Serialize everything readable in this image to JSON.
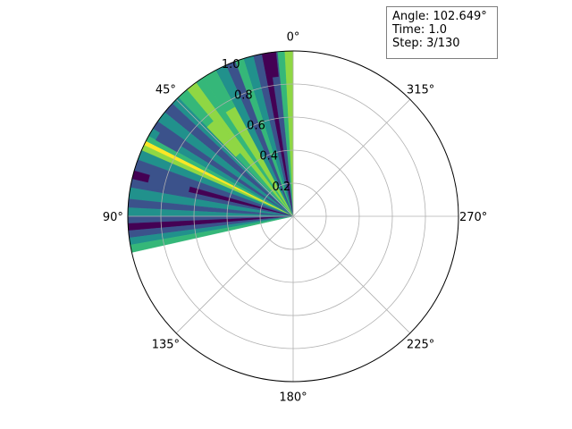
{
  "info": {
    "angle_label": "Angle: 102.649°",
    "time_label": "Time: 1.0",
    "step_label": "Step: 3/130"
  },
  "chart_data": {
    "type": "polar_contour",
    "theta_zero_location": "top",
    "theta_direction": "counterclockwise",
    "rmax": 1.0,
    "swept_angle_deg": 102.649,
    "theta_ticks": [
      "0°",
      "45°",
      "90°",
      "135°",
      "180°",
      "225°",
      "270°",
      "315°"
    ],
    "r_ticks": [
      "0.2",
      "0.4",
      "0.6",
      "0.8",
      "1.0"
    ],
    "r_tick_values": [
      0.2,
      0.4,
      0.6,
      0.8,
      1.0
    ],
    "grid": true,
    "colormap": [
      "#440154",
      "#3b528b",
      "#21918c",
      "#35b779",
      "#8fd744",
      "#fde725"
    ],
    "sectors": [
      {
        "from": 0.0,
        "to": 3.0,
        "level": 4
      },
      {
        "from": 3.0,
        "to": 5.5,
        "level": 3
      },
      {
        "from": 5.5,
        "to": 8.5,
        "level": 1
      },
      {
        "from": 8.5,
        "to": 11.0,
        "level": 0
      },
      {
        "from": 11.0,
        "to": 14.0,
        "level": 1
      },
      {
        "from": 14.0,
        "to": 17.5,
        "level": 2
      },
      {
        "from": 17.5,
        "to": 20.5,
        "level": 3
      },
      {
        "from": 20.5,
        "to": 24.0,
        "level": 1
      },
      {
        "from": 24.0,
        "to": 28.0,
        "level": 2
      },
      {
        "from": 28.0,
        "to": 33.0,
        "level": 4
      },
      {
        "from": 33.0,
        "to": 36.0,
        "level": 3
      },
      {
        "from": 36.0,
        "to": 40.0,
        "level": 4
      },
      {
        "from": 40.0,
        "to": 44.0,
        "level": 3
      },
      {
        "from": 44.0,
        "to": 47.0,
        "level": 2
      },
      {
        "from": 47.0,
        "to": 51.0,
        "level": 1
      },
      {
        "from": 51.0,
        "to": 55.0,
        "level": 2
      },
      {
        "from": 55.0,
        "to": 58.0,
        "level": 1
      },
      {
        "from": 58.0,
        "to": 61.0,
        "level": 2
      },
      {
        "from": 61.0,
        "to": 63.0,
        "level": 3
      },
      {
        "from": 63.0,
        "to": 64.5,
        "level": 5
      },
      {
        "from": 64.5,
        "to": 66.5,
        "level": 4
      },
      {
        "from": 66.5,
        "to": 70.0,
        "level": 2
      },
      {
        "from": 70.0,
        "to": 74.0,
        "level": 1
      },
      {
        "from": 74.0,
        "to": 77.0,
        "level": 0
      },
      {
        "from": 77.0,
        "to": 80.0,
        "level": 1
      },
      {
        "from": 80.0,
        "to": 84.0,
        "level": 2
      },
      {
        "from": 84.0,
        "to": 87.0,
        "level": 1
      },
      {
        "from": 87.0,
        "to": 90.0,
        "level": 2
      },
      {
        "from": 90.0,
        "to": 92.5,
        "level": 1
      },
      {
        "from": 92.5,
        "to": 95.0,
        "level": 0
      },
      {
        "from": 95.0,
        "to": 97.5,
        "level": 1
      },
      {
        "from": 97.5,
        "to": 100.0,
        "level": 2
      },
      {
        "from": 100.0,
        "to": 102.649,
        "level": 3
      }
    ],
    "patches": [
      {
        "theta_from": 38.0,
        "theta_to": 44.0,
        "r_from": 0.5,
        "r_to": 0.75,
        "level": 4
      },
      {
        "theta_from": 28.0,
        "theta_to": 33.0,
        "r_from": 0.75,
        "r_to": 1.0,
        "level": 3
      },
      {
        "theta_from": 71.0,
        "theta_to": 79.0,
        "r_from": 0.65,
        "r_to": 0.9,
        "level": 1
      },
      {
        "theta_from": 55.0,
        "theta_to": 61.0,
        "r_from": 0.8,
        "r_to": 0.95,
        "level": 1
      },
      {
        "theta_from": 6.0,
        "theta_to": 10.0,
        "r_from": 0.85,
        "r_to": 1.0,
        "level": 0
      }
    ]
  }
}
